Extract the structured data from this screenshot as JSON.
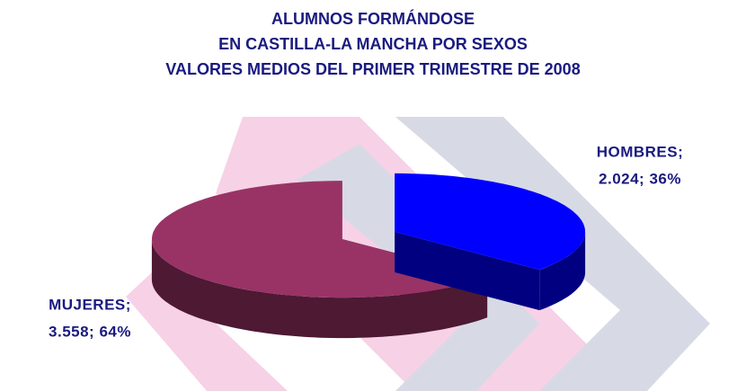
{
  "chart_data": {
    "type": "pie3d",
    "title": [
      "ALUMNOS FORMÁNDOSE",
      "EN CASTILLA-LA MANCHA POR SEXOS",
      "VALORES MEDIOS DEL PRIMER TRIMESTRE DE 2008"
    ],
    "categories": [
      "HOMBRES;",
      "MUJERES;"
    ],
    "values": [
      2024,
      3558
    ],
    "percentages": [
      36,
      64
    ],
    "value_labels": [
      "2.024; 36%",
      "3.558; 64%"
    ],
    "colors": [
      "#0000ff",
      "#993366"
    ],
    "side_colors": [
      "#000080",
      "#4d1933"
    ]
  }
}
